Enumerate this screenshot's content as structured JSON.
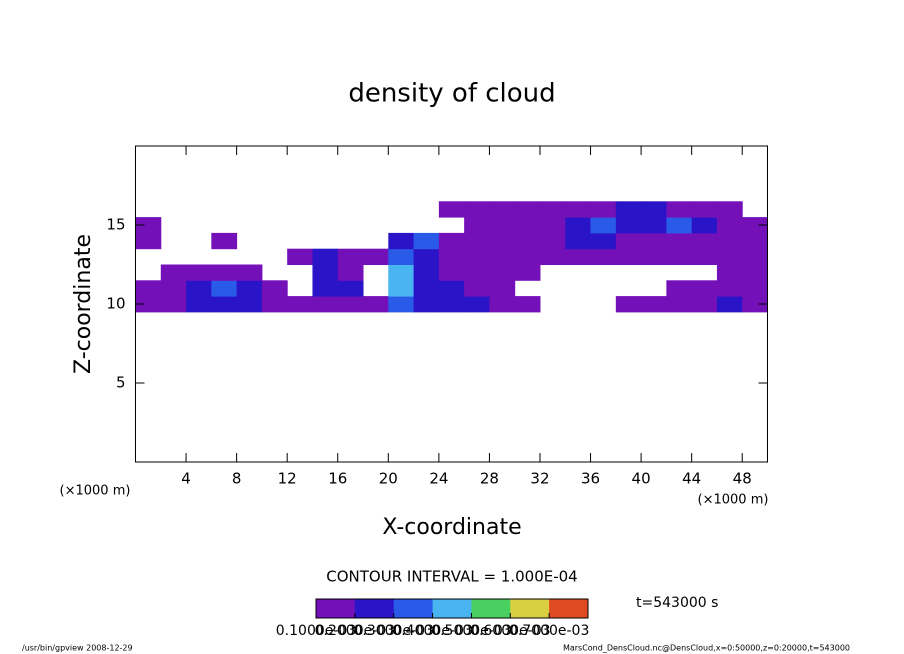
{
  "chart_data": {
    "type": "contour",
    "title": "density of cloud",
    "x_label": "X-coordinate",
    "y_label": "Z-coordinate",
    "x_unit": "(×1000 m)",
    "xlim": [
      0,
      50
    ],
    "xticks": [
      4,
      8,
      12,
      16,
      20,
      24,
      28,
      32,
      36,
      40,
      44,
      48
    ],
    "ylim": [
      0,
      20
    ],
    "yticks": [
      5,
      10,
      15
    ],
    "x": [
      1,
      3,
      5,
      7,
      9,
      11,
      13,
      15,
      17,
      19,
      21,
      23,
      25,
      27,
      29,
      31,
      33,
      35,
      37,
      39,
      41,
      43,
      45,
      47,
      49
    ],
    "y": [
      10,
      11,
      12,
      13,
      14,
      15,
      16
    ],
    "values": [
      [
        0.0001,
        0.0001,
        0.0002,
        0.0002,
        0.0002,
        0.0001,
        0.0001,
        0.0001,
        0.0001,
        0.0001,
        0.0003,
        0.0002,
        0.0002,
        0.0002,
        0.0001,
        0.0001,
        0,
        0,
        0,
        0.0001,
        0.0001,
        0.0001,
        0.0001,
        0.0002,
        0.0001
      ],
      [
        0.0001,
        0.0001,
        0.0002,
        0.0003,
        0.0002,
        0.0001,
        0,
        0.0002,
        0.0002,
        0,
        0.0004,
        0.0002,
        0.0002,
        0.0001,
        0.0001,
        0,
        0,
        0,
        0,
        0,
        0,
        0.0001,
        0.0001,
        0.0001,
        0.0001
      ],
      [
        0,
        0.0001,
        0.0001,
        0.0001,
        0.0001,
        0,
        0,
        0.0002,
        0.0001,
        0,
        0.0004,
        0.0002,
        0.0001,
        0.0001,
        0.0001,
        0.0001,
        0,
        0,
        0,
        0,
        0,
        0,
        0,
        0.0001,
        0.0001
      ],
      [
        0,
        0,
        0,
        0,
        0,
        0,
        0.0001,
        0.0002,
        0.0001,
        0.0001,
        0.0003,
        0.0002,
        0.0001,
        0.0001,
        0.0001,
        0.0001,
        0.0001,
        0.0001,
        0.0001,
        0.0001,
        0.0001,
        0.0001,
        0.0001,
        0.0001,
        0.0001
      ],
      [
        0.0001,
        0,
        0,
        0.0001,
        0,
        0,
        0,
        0,
        0,
        0,
        0.0002,
        0.0003,
        0.0001,
        0.0001,
        0.0001,
        0.0001,
        0.0001,
        0.0002,
        0.0002,
        0.0001,
        0.0001,
        0.0001,
        0.0001,
        0.0001,
        0.0001
      ],
      [
        0.0001,
        0,
        0,
        0,
        0,
        0,
        0,
        0,
        0,
        0,
        0,
        0,
        0,
        0.0001,
        0.0001,
        0.0001,
        0.0001,
        0.0002,
        0.0003,
        0.0002,
        0.0002,
        0.0003,
        0.0002,
        0.0001,
        0.0001
      ],
      [
        0,
        0,
        0,
        0,
        0,
        0,
        0,
        0,
        0,
        0,
        0,
        0,
        0.0001,
        0.0001,
        0.0001,
        0.0001,
        0.0001,
        0.0001,
        0.0001,
        0.0002,
        0.0002,
        0.0001,
        0.0001,
        0.0001,
        0
      ]
    ],
    "levels": [
      0.0001,
      0.0002,
      0.0003,
      0.0004,
      0.0005,
      0.0006,
      0.0007
    ],
    "colors": [
      "#7410b8",
      "#2a14c8",
      "#2a5ae8",
      "#48b4f0",
      "#48d060",
      "#d8d040",
      "#e04a20"
    ],
    "colorbar_lim": [
      0.0001,
      0.0008
    ],
    "colorbar_ticks": [
      {
        "value": 0.0001,
        "label": "0.1000e-03"
      },
      {
        "value": 0.0002,
        "label": "0.2000e-03"
      },
      {
        "value": 0.0003,
        "label": "0.3000e-03"
      },
      {
        "value": 0.0004,
        "label": "0.4000e-03"
      },
      {
        "value": 0.0005,
        "label": "0.5000e-03"
      },
      {
        "value": 0.0006,
        "label": "0.6000e-03"
      },
      {
        "value": 0.0007,
        "label": "0.7000e-03"
      }
    ],
    "contour_interval": "CONTOUR INTERVAL = 1.000E-04",
    "time_label": "t=543000 s",
    "footer_left": "/usr/bin/gpview  2008-12-29",
    "footer_right": "MarsCond_DensCloud.nc@DensCloud,x=0:50000,z=0:20000,t=543000"
  }
}
